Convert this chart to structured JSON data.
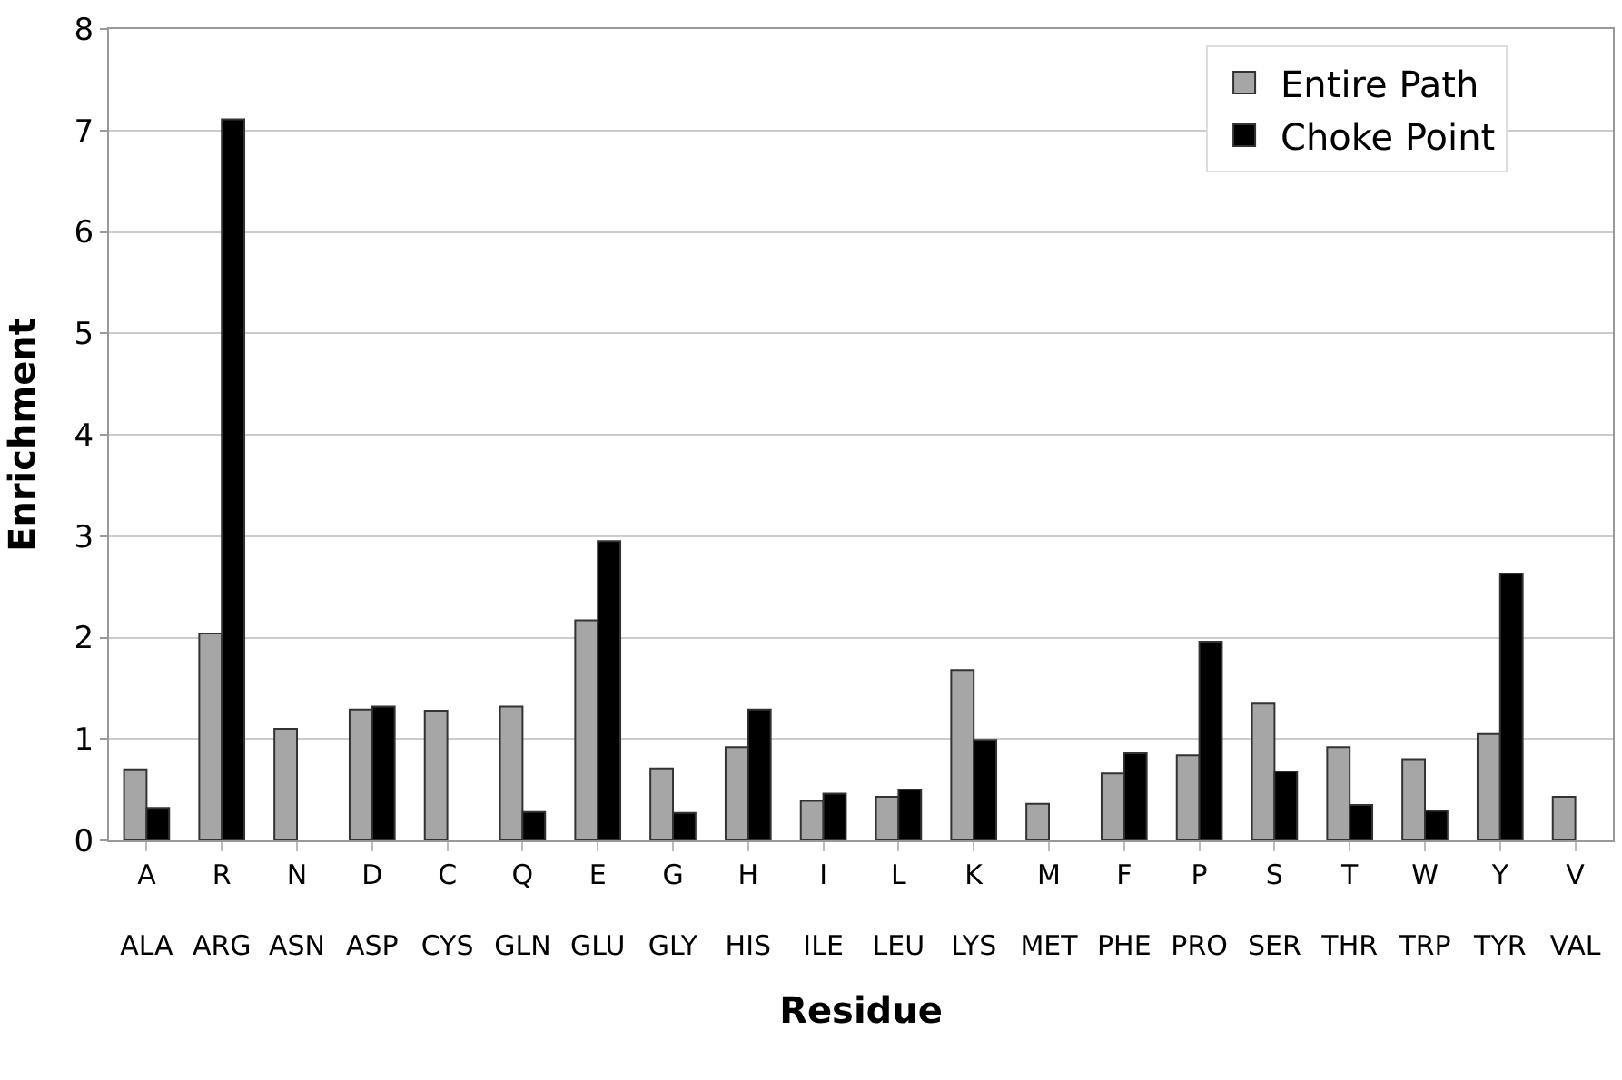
{
  "chart_data": {
    "type": "bar",
    "xlabel": "Residue",
    "ylabel": "Enrichment",
    "categories": [
      "A\nALA",
      "R\nARG",
      "N\nASN",
      "D\nASP",
      "C\nCYS",
      "Q\nGLN",
      "E\nGLU",
      "G\nGLY",
      "H\nHIS",
      "I\nILE",
      "L\nLEU",
      "K\nLYS",
      "M\nMET",
      "F\nPHE",
      "P\nPRO",
      "S\nSER",
      "T\nTHR",
      "W\nTRP",
      "Y\nTYR",
      "V\nVAL"
    ],
    "series": [
      {
        "name": "Entire Path",
        "color": "#a6a6a6",
        "values": [
          0.7,
          2.04,
          1.1,
          1.29,
          1.28,
          1.32,
          2.17,
          0.71,
          0.92,
          0.39,
          0.43,
          1.68,
          0.36,
          0.66,
          0.84,
          1.35,
          0.92,
          0.8,
          1.05,
          0.43
        ]
      },
      {
        "name": "Choke Point",
        "color": "#000000",
        "values": [
          0.32,
          7.11,
          null,
          1.32,
          null,
          0.28,
          2.95,
          0.27,
          1.29,
          0.46,
          0.5,
          0.99,
          null,
          0.86,
          1.96,
          0.68,
          0.35,
          0.29,
          2.63,
          null
        ]
      }
    ],
    "ylim": [
      0,
      8
    ],
    "yticks": [
      0,
      1,
      2,
      3,
      4,
      5,
      6,
      7,
      8
    ],
    "grid": "y",
    "legend": "top right"
  }
}
